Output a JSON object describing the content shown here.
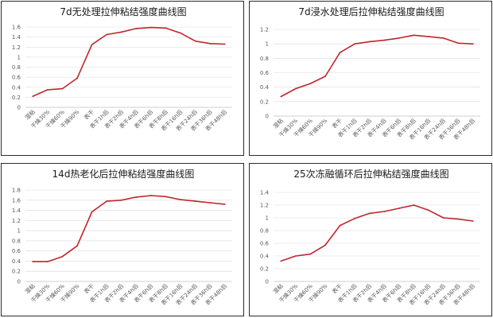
{
  "chart_data": [
    {
      "type": "line",
      "title": "7d无处理拉伸粘结强度曲线图",
      "categories": [
        "湿粘",
        "干燥30%",
        "干燥60%",
        "干燥90%",
        "表干",
        "表干1h后",
        "表干2h后",
        "表干4h后",
        "表干6h后",
        "表干8h后",
        "表干16h后",
        "表干24h后",
        "表干36h后",
        "表干48h后"
      ],
      "series": [
        {
          "values": [
            0.22,
            0.35,
            0.37,
            0.58,
            1.25,
            1.45,
            1.5,
            1.57,
            1.59,
            1.58,
            1.48,
            1.32,
            1.27,
            1.26
          ]
        }
      ],
      "yticks": [
        "0",
        "0.2",
        "0.4",
        "0.6",
        "0.8",
        "1",
        "1.2",
        "1.4",
        "1.6"
      ],
      "ylim": [
        0,
        1.6
      ],
      "grid": true,
      "line_color": "#c0262d"
    },
    {
      "type": "line",
      "title": "7d浸水处理后拉伸粘结强度曲线图",
      "categories": [
        "湿粘",
        "干燥30%",
        "干燥60%",
        "干燥90%",
        "表干",
        "表干1h后",
        "表干2h后",
        "表干4h后",
        "表干6h后",
        "表干8h后",
        "表干16h后",
        "表干24h后",
        "表干36h后",
        "表干48h后"
      ],
      "series": [
        {
          "values": [
            0.27,
            0.38,
            0.45,
            0.55,
            0.88,
            1.0,
            1.03,
            1.05,
            1.08,
            1.12,
            1.1,
            1.08,
            1.01,
            1.0
          ]
        }
      ],
      "yticks": [
        "0",
        "0.2",
        "0.4",
        "0.6",
        "0.8",
        "1",
        "1.2"
      ],
      "ylim": [
        0,
        1.2
      ],
      "grid": true,
      "line_color": "#c0262d"
    },
    {
      "type": "line",
      "title": "14d热老化后拉伸粘结强度曲线图",
      "categories": [
        "湿粘",
        "干燥30%",
        "干燥60%",
        "干燥90%",
        "表干",
        "表干1h后",
        "表干2h后",
        "表干4h后",
        "表干6h后",
        "表干8h后",
        "表干16h后",
        "表干24h后",
        "表干36h后",
        "表干48h后"
      ],
      "series": [
        {
          "values": [
            0.39,
            0.39,
            0.49,
            0.7,
            1.37,
            1.58,
            1.6,
            1.66,
            1.69,
            1.67,
            1.61,
            1.58,
            1.55,
            1.52
          ]
        }
      ],
      "yticks": [
        "0",
        "0.2",
        "0.4",
        "0.6",
        "0.8",
        "1",
        "1.2",
        "1.4",
        "1.6",
        "1.8"
      ],
      "ylim": [
        0,
        1.8
      ],
      "grid": true,
      "line_color": "#c0262d"
    },
    {
      "type": "line",
      "title": "25次冻融循环后拉伸粘结强度曲线图",
      "categories": [
        "湿粘",
        "干燥30%",
        "干燥60%",
        "干燥90%",
        "表干",
        "表干1h后",
        "表干2h后",
        "表干4h后",
        "表干6h后",
        "表干8h后",
        "表干16h后",
        "表干24h后",
        "表干36h后",
        "表干48h后"
      ],
      "series": [
        {
          "values": [
            0.32,
            0.4,
            0.43,
            0.57,
            0.88,
            0.99,
            1.07,
            1.1,
            1.15,
            1.2,
            1.12,
            1.0,
            0.98,
            0.95
          ]
        }
      ],
      "yticks": [
        "0",
        "0.2",
        "0.4",
        "0.6",
        "0.8",
        "1",
        "1.2",
        "1.4"
      ],
      "ylim": [
        0,
        1.4
      ],
      "grid": true,
      "line_color": "#c0262d"
    }
  ]
}
